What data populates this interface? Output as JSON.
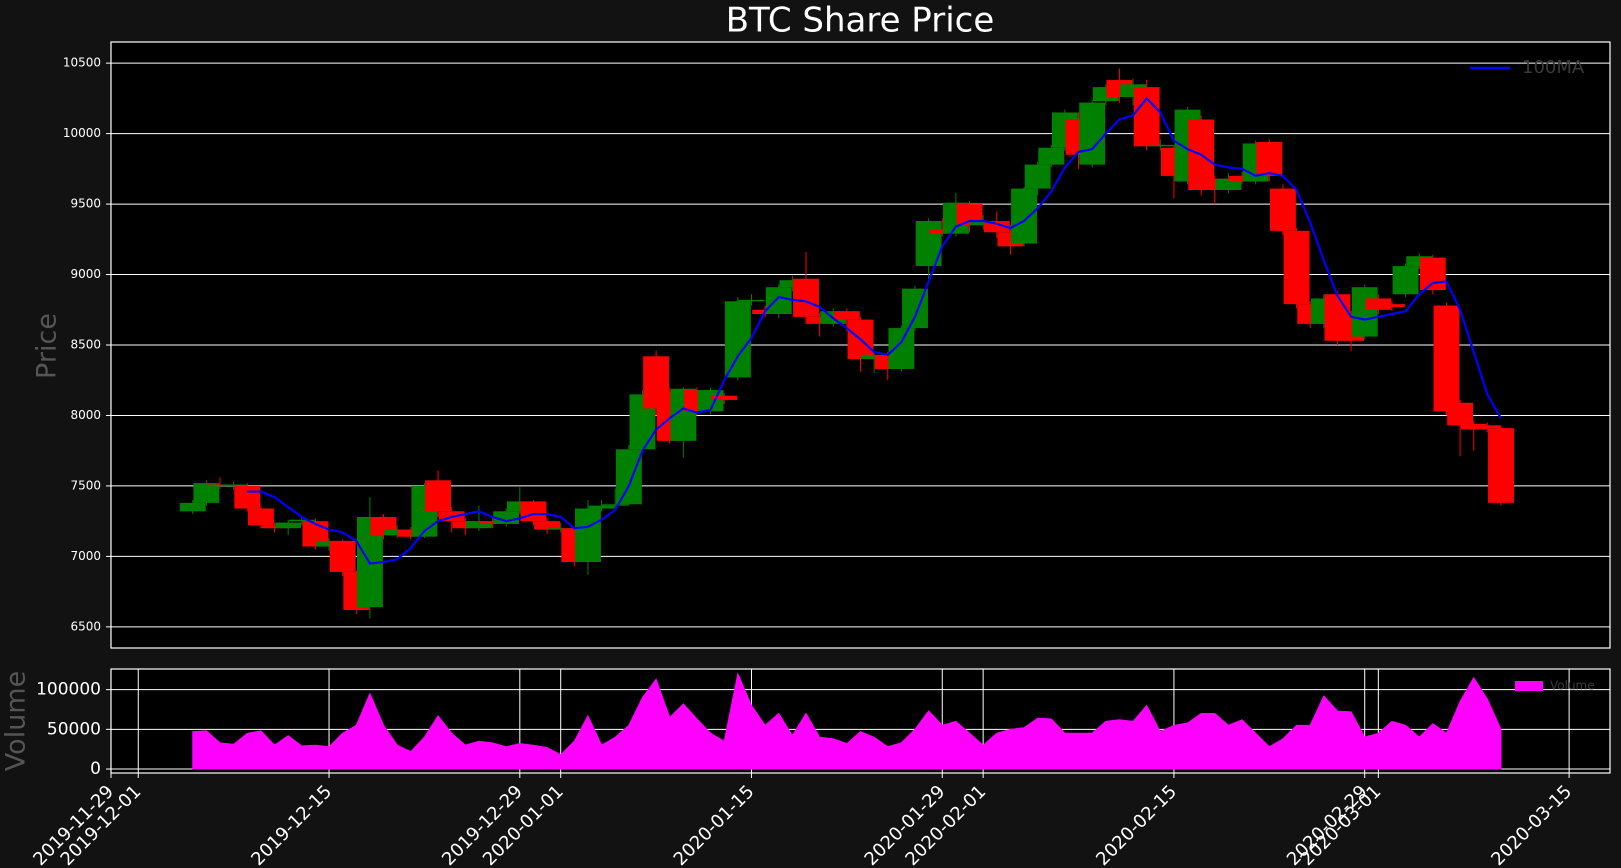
{
  "chart_data": [
    {
      "type": "candlestick",
      "title": "BTC Share Price",
      "y_label": "Price",
      "x": [
        "2019-12-05",
        "2019-12-06",
        "2019-12-07",
        "2019-12-08",
        "2019-12-09",
        "2019-12-10",
        "2019-12-11",
        "2019-12-12",
        "2019-12-13",
        "2019-12-14",
        "2019-12-15",
        "2019-12-16",
        "2019-12-17",
        "2019-12-18",
        "2019-12-19",
        "2019-12-20",
        "2019-12-21",
        "2019-12-22",
        "2019-12-23",
        "2019-12-24",
        "2019-12-25",
        "2019-12-26",
        "2019-12-27",
        "2019-12-28",
        "2019-12-29",
        "2019-12-30",
        "2019-12-31",
        "2020-01-01",
        "2020-01-02",
        "2020-01-03",
        "2020-01-04",
        "2020-01-05",
        "2020-01-06",
        "2020-01-07",
        "2020-01-08",
        "2020-01-09",
        "2020-01-10",
        "2020-01-11",
        "2020-01-12",
        "2020-01-13",
        "2020-01-14",
        "2020-01-15",
        "2020-01-16",
        "2020-01-17",
        "2020-01-18",
        "2020-01-19",
        "2020-01-20",
        "2020-01-21",
        "2020-01-22",
        "2020-01-23",
        "2020-01-24",
        "2020-01-25",
        "2020-01-26",
        "2020-01-27",
        "2020-01-28",
        "2020-01-29",
        "2020-01-30",
        "2020-01-31",
        "2020-02-01",
        "2020-02-02",
        "2020-02-03",
        "2020-02-04",
        "2020-02-05",
        "2020-02-06",
        "2020-02-07",
        "2020-02-08",
        "2020-02-09",
        "2020-02-10",
        "2020-02-11",
        "2020-02-12",
        "2020-02-13",
        "2020-02-14",
        "2020-02-15",
        "2020-02-16",
        "2020-02-17",
        "2020-02-18",
        "2020-02-19",
        "2020-02-20",
        "2020-02-21",
        "2020-02-22",
        "2020-02-23",
        "2020-02-24",
        "2020-02-25",
        "2020-02-26",
        "2020-02-27",
        "2020-02-28",
        "2020-02-29",
        "2020-03-01",
        "2020-03-02",
        "2020-03-03",
        "2020-03-04",
        "2020-03-05",
        "2020-03-06",
        "2020-03-07",
        "2020-03-08",
        "2020-03-09",
        "2020-03-10"
      ],
      "series": [
        {
          "type": "candlestick",
          "up_color": "#008000",
          "down_color": "#ff0000",
          "open": [
            7320,
            7380,
            7510,
            7500,
            7500,
            7340,
            7220,
            7200,
            7250,
            7250,
            7070,
            7110,
            6890,
            6640,
            7280,
            7150,
            7190,
            7140,
            7540,
            7320,
            7250,
            7200,
            7250,
            7230,
            7320,
            7390,
            7250,
            7190,
            7200,
            6960,
            7340,
            7360,
            7370,
            7760,
            8420,
            8170,
            7820,
            8180,
            8030,
            8140,
            8270,
            8810,
            8750,
            8720,
            8910,
            8970,
            8700,
            8650,
            8740,
            8680,
            8400,
            8430,
            8330,
            8620,
            9060,
            9320,
            9290,
            9500,
            9350,
            9380,
            9300,
            9220,
            9610,
            9780,
            9900,
            10100,
            9780,
            10230,
            10380,
            10260,
            10330,
            9910,
            9900,
            9660,
            10100,
            9680,
            9600,
            9700,
            9660,
            9940,
            9610,
            9310,
            8790,
            8650,
            8860,
            8720,
            8560,
            8830,
            8790,
            8860,
            9060,
            9120,
            8780,
            8090,
            7940,
            7930,
            7910
          ],
          "high": [
            7400,
            7540,
            7560,
            7530,
            7520,
            7360,
            7240,
            7260,
            7280,
            7270,
            7130,
            7120,
            6900,
            7420,
            7300,
            7220,
            7210,
            7520,
            7610,
            7350,
            7270,
            7360,
            7280,
            7340,
            7490,
            7400,
            7270,
            7240,
            7210,
            7400,
            7400,
            7480,
            7790,
            8180,
            8460,
            8200,
            8200,
            8200,
            8200,
            8160,
            8840,
            8860,
            8780,
            8930,
            8990,
            9160,
            8730,
            8760,
            8760,
            8700,
            8450,
            8450,
            8640,
            8920,
            9400,
            9400,
            9580,
            9520,
            9420,
            9450,
            9350,
            9620,
            9800,
            9920,
            10170,
            10150,
            10240,
            10350,
            10460,
            10390,
            10380,
            9960,
            9920,
            10190,
            10130,
            9700,
            9720,
            9730,
            9950,
            9960,
            9640,
            9330,
            8810,
            8860,
            8880,
            8740,
            8930,
            8860,
            8810,
            9080,
            9150,
            9140,
            8800,
            8110,
            7960,
            7950,
            7930
          ],
          "low": [
            7300,
            7360,
            7480,
            7470,
            7320,
            7200,
            7170,
            7150,
            7220,
            7050,
            7040,
            6860,
            6590,
            6560,
            7120,
            7130,
            7120,
            7130,
            7280,
            7170,
            7150,
            7180,
            7200,
            7210,
            7300,
            7220,
            7160,
            7170,
            6930,
            6870,
            7320,
            7340,
            7360,
            7740,
            8000,
            7800,
            7700,
            8000,
            8010,
            8080,
            8250,
            8780,
            8700,
            8690,
            8880,
            8650,
            8560,
            8630,
            8600,
            8310,
            8300,
            8250,
            8310,
            8600,
            8970,
            9270,
            9270,
            9300,
            9320,
            9260,
            9140,
            9200,
            9560,
            9760,
            9880,
            9750,
            9760,
            10200,
            10220,
            10200,
            9880,
            9880,
            9540,
            9640,
            9560,
            9500,
            9580,
            9640,
            9640,
            9660,
            9280,
            8760,
            8620,
            8620,
            8500,
            8460,
            8540,
            8720,
            8740,
            8840,
            9040,
            8860,
            8000,
            7710,
            7750,
            7880,
            7360
          ],
          "close": [
            7380,
            7520,
            7500,
            7510,
            7340,
            7220,
            7200,
            7240,
            7260,
            7070,
            7110,
            6890,
            6620,
            7280,
            7150,
            7190,
            7140,
            7500,
            7320,
            7250,
            7200,
            7250,
            7230,
            7320,
            7390,
            7250,
            7190,
            7200,
            6960,
            7340,
            7360,
            7370,
            7760,
            8150,
            8050,
            7820,
            8190,
            8030,
            8180,
            8110,
            8810,
            8820,
            8720,
            8910,
            8960,
            8700,
            8650,
            8740,
            8680,
            8400,
            8430,
            8330,
            8620,
            8900,
            9380,
            9290,
            9510,
            9350,
            9380,
            9300,
            9200,
            9610,
            9780,
            9900,
            10150,
            9850,
            10220,
            10330,
            10260,
            10350,
            9910,
            9920,
            9700,
            10170,
            9600,
            9600,
            9680,
            9660,
            9930,
            9700,
            9310,
            8790,
            8650,
            8830,
            8530,
            8530,
            8910,
            8750,
            8770,
            9060,
            9130,
            8890,
            8030,
            7930,
            7900,
            7910,
            7380
          ]
        },
        {
          "type": "line",
          "name": "100MA",
          "color": "#0000ff",
          "values": [
            null,
            null,
            null,
            null,
            7460,
            7460,
            7420,
            7350,
            7280,
            7230,
            7190,
            7170,
            7110,
            6950,
            6960,
            6980,
            7060,
            7180,
            7250,
            7280,
            7300,
            7320,
            7280,
            7250,
            7270,
            7300,
            7300,
            7280,
            7200,
            7210,
            7260,
            7330,
            7500,
            7750,
            7900,
            7980,
            8050,
            8020,
            8040,
            8250,
            8420,
            8550,
            8740,
            8840,
            8820,
            8810,
            8770,
            8690,
            8620,
            8540,
            8450,
            8430,
            8520,
            8700,
            8950,
            9200,
            9340,
            9380,
            9380,
            9360,
            9330,
            9380,
            9470,
            9590,
            9760,
            9870,
            9890,
            10000,
            10100,
            10130,
            10250,
            10150,
            9950,
            9890,
            9850,
            9780,
            9760,
            9750,
            9700,
            9720,
            9700,
            9600,
            9370,
            9100,
            8850,
            8700,
            8680,
            8700,
            8720,
            8740,
            8860,
            8940,
            8950,
            8750,
            8450,
            8150,
            7980
          ]
        }
      ],
      "xlim": [
        "2019-11-29",
        "2020-03-18"
      ],
      "ylim": [
        6350,
        10650
      ],
      "yticks": [
        6500,
        7000,
        7500,
        8000,
        8500,
        9000,
        9500,
        10000,
        10500
      ],
      "grid": "y",
      "legend": "upper right"
    },
    {
      "type": "area",
      "y_label": "Volume",
      "x": [
        "2019-12-05",
        "2019-12-06",
        "2019-12-07",
        "2019-12-08",
        "2019-12-09",
        "2019-12-10",
        "2019-12-11",
        "2019-12-12",
        "2019-12-13",
        "2019-12-14",
        "2019-12-15",
        "2019-12-16",
        "2019-12-17",
        "2019-12-18",
        "2019-12-19",
        "2019-12-20",
        "2019-12-21",
        "2019-12-22",
        "2019-12-23",
        "2019-12-24",
        "2019-12-25",
        "2019-12-26",
        "2019-12-27",
        "2019-12-28",
        "2019-12-29",
        "2019-12-30",
        "2019-12-31",
        "2020-01-01",
        "2020-01-02",
        "2020-01-03",
        "2020-01-04",
        "2020-01-05",
        "2020-01-06",
        "2020-01-07",
        "2020-01-08",
        "2020-01-09",
        "2020-01-10",
        "2020-01-11",
        "2020-01-12",
        "2020-01-13",
        "2020-01-14",
        "2020-01-15",
        "2020-01-16",
        "2020-01-17",
        "2020-01-18",
        "2020-01-19",
        "2020-01-20",
        "2020-01-21",
        "2020-01-22",
        "2020-01-23",
        "2020-01-24",
        "2020-01-25",
        "2020-01-26",
        "2020-01-27",
        "2020-01-28",
        "2020-01-29",
        "2020-01-30",
        "2020-01-31",
        "2020-02-01",
        "2020-02-02",
        "2020-02-03",
        "2020-02-04",
        "2020-02-05",
        "2020-02-06",
        "2020-02-07",
        "2020-02-08",
        "2020-02-09",
        "2020-02-10",
        "2020-02-11",
        "2020-02-12",
        "2020-02-13",
        "2020-02-14",
        "2020-02-15",
        "2020-02-16",
        "2020-02-17",
        "2020-02-18",
        "2020-02-19",
        "2020-02-20",
        "2020-02-21",
        "2020-02-22",
        "2020-02-23",
        "2020-02-24",
        "2020-02-25",
        "2020-02-26",
        "2020-02-27",
        "2020-02-28",
        "2020-02-29",
        "2020-03-01",
        "2020-03-02",
        "2020-03-03",
        "2020-03-04",
        "2020-03-05",
        "2020-03-06",
        "2020-03-07",
        "2020-03-08",
        "2020-03-09",
        "2020-03-10"
      ],
      "series": [
        {
          "name": "Volume",
          "color": "#ff00ff",
          "values": [
            47000,
            48000,
            33000,
            31000,
            45000,
            48000,
            30000,
            42000,
            29000,
            30000,
            28000,
            45000,
            55000,
            95000,
            55000,
            30000,
            22000,
            40000,
            67000,
            45000,
            30000,
            35000,
            33000,
            28000,
            32000,
            30000,
            27000,
            18000,
            35000,
            67000,
            30000,
            40000,
            55000,
            90000,
            113000,
            65000,
            82000,
            63000,
            45000,
            35000,
            120000,
            80000,
            55000,
            70000,
            42000,
            70000,
            40000,
            38000,
            32000,
            47000,
            40000,
            28000,
            33000,
            50000,
            73000,
            55000,
            60000,
            45000,
            30000,
            45000,
            50000,
            52000,
            64000,
            63000,
            45000,
            45000,
            45000,
            60000,
            62000,
            60000,
            80000,
            47000,
            55000,
            58000,
            70000,
            70000,
            55000,
            62000,
            45000,
            28000,
            38000,
            55000,
            55000,
            92000,
            73000,
            72000,
            40000,
            45000,
            60000,
            55000,
            40000,
            57000,
            45000,
            85000,
            115000,
            88000,
            50000
          ]
        }
      ],
      "xlim": [
        "2019-11-29",
        "2020-03-18"
      ],
      "xticks": [
        "2019-11-29",
        "2019-12-01",
        "2019-12-15",
        "2019-12-29",
        "2020-01-01",
        "2020-01-15",
        "2020-01-29",
        "2020-02-01",
        "2020-02-15",
        "2020-02-29",
        "2020-03-01",
        "2020-03-15"
      ],
      "ylim": [
        -5000,
        126000
      ],
      "yticks": [
        0,
        50000,
        100000
      ],
      "grid": "both",
      "legend": "upper right"
    }
  ]
}
